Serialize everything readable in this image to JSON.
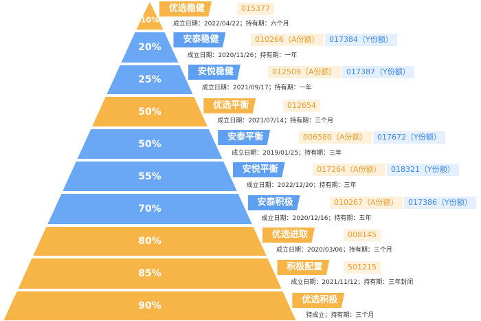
{
  "colors": {
    "orange": "#f7b548",
    "blue": "#6aa7f4",
    "tag_orange_bg": "#fff1dc",
    "tag_orange_text": "#f39a2b",
    "tag_blue_bg": "#e4efff",
    "tag_blue_text": "#3a86f0"
  },
  "levels": [
    {
      "pct": "10%",
      "color": "orange",
      "name": "优选稳健",
      "codes": [
        {
          "text": "015377",
          "color": "orange"
        }
      ],
      "info": "成立日期：2022/04/22；持有期：六个月"
    },
    {
      "pct": "20%",
      "color": "blue",
      "name": "安泰稳健",
      "codes": [
        {
          "text": "010266（A份额）",
          "color": "orange"
        },
        {
          "text": "017384（Y份额）",
          "color": "blue"
        }
      ],
      "info": "成立日期：2020/11/26；持有期：一年"
    },
    {
      "pct": "25%",
      "color": "blue",
      "name": "安悦稳健",
      "codes": [
        {
          "text": "012509（A份额）",
          "color": "orange"
        },
        {
          "text": "017387（Y份额）",
          "color": "blue"
        }
      ],
      "info": "成立日期：2021/09/17；持有期：一年"
    },
    {
      "pct": "50%",
      "color": "orange",
      "name": "优选平衡",
      "codes": [
        {
          "text": "012654",
          "color": "orange"
        }
      ],
      "info": "成立日期：2021/07/14；持有期：三个月"
    },
    {
      "pct": "50%",
      "color": "blue",
      "name": "安泰平衡",
      "codes": [
        {
          "text": "006580（A份额）",
          "color": "orange"
        },
        {
          "text": "017672（Y份额）",
          "color": "blue"
        }
      ],
      "info": "成立日期：2019/01/25；持有期：三年"
    },
    {
      "pct": "55%",
      "color": "blue",
      "name": "安悦平衡",
      "codes": [
        {
          "text": "017264（A份额）",
          "color": "orange"
        },
        {
          "text": "018321（Y份额）",
          "color": "blue"
        }
      ],
      "info": "成立日期：2022/12/20；持有期：三年"
    },
    {
      "pct": "70%",
      "color": "blue",
      "name": "安泰积极",
      "codes": [
        {
          "text": "010267（A份额）",
          "color": "orange"
        },
        {
          "text": "017386（Y份额）",
          "color": "blue"
        }
      ],
      "info": "成立日期：2020/12/16；持有期：五年"
    },
    {
      "pct": "80%",
      "color": "orange",
      "name": "优选进取",
      "codes": [
        {
          "text": "008145",
          "color": "orange"
        }
      ],
      "info": "成立日期：2020/03/06；持有期：三个月"
    },
    {
      "pct": "85%",
      "color": "orange",
      "name": "积极配置",
      "codes": [
        {
          "text": "501215",
          "color": "orange"
        }
      ],
      "info": "成立日期：2021/11/12；持有期：三年封闭"
    },
    {
      "pct": "90%",
      "color": "orange",
      "name": "优选积极",
      "codes": [],
      "info": "待成立；持有期：三个月"
    }
  ]
}
